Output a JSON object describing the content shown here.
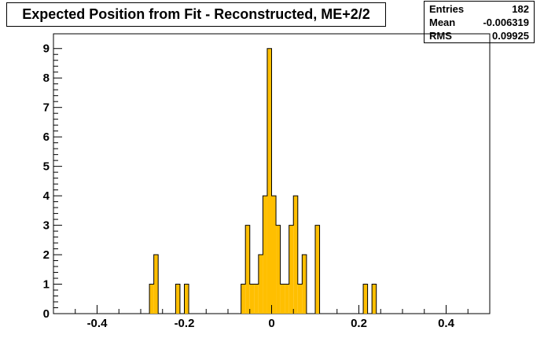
{
  "title": "Expected Position from Fit - Reconstructed, ME+2/2",
  "stats": [
    {
      "label": "Entries",
      "value": "182"
    },
    {
      "label": "Mean",
      "value": "-0.006319"
    },
    {
      "label": "RMS",
      "value": "0.09925"
    }
  ],
  "colors": {
    "fill": "#ffbf00",
    "line": "#000000",
    "background": "#ffffff"
  },
  "chart_data": {
    "type": "bar",
    "title": "Expected Position from Fit - Reconstructed, ME+2/2",
    "xlabel": "",
    "ylabel": "",
    "xlim": [
      -0.5,
      0.5
    ],
    "ylim": [
      0,
      9.5
    ],
    "bin_width": 0.01,
    "xticks": [
      "-0.4",
      "-0.2",
      "0",
      "0.2",
      "0.4"
    ],
    "xtick_values": [
      -0.4,
      -0.2,
      0,
      0.2,
      0.4
    ],
    "yticks": [
      "0",
      "1",
      "2",
      "3",
      "4",
      "5",
      "6",
      "7",
      "8",
      "9"
    ],
    "yticks_values": [
      0,
      1,
      2,
      3,
      4,
      5,
      6,
      7,
      8,
      9
    ],
    "grid": false,
    "bins": [
      {
        "x": -0.275,
        "value": 1
      },
      {
        "x": -0.265,
        "value": 2
      },
      {
        "x": -0.215,
        "value": 1
      },
      {
        "x": -0.195,
        "value": 1
      },
      {
        "x": -0.065,
        "value": 1
      },
      {
        "x": -0.055,
        "value": 3
      },
      {
        "x": -0.045,
        "value": 1
      },
      {
        "x": -0.035,
        "value": 1
      },
      {
        "x": -0.025,
        "value": 2
      },
      {
        "x": -0.015,
        "value": 4
      },
      {
        "x": -0.005,
        "value": 9
      },
      {
        "x": 0.005,
        "value": 4
      },
      {
        "x": 0.015,
        "value": 3
      },
      {
        "x": 0.025,
        "value": 1
      },
      {
        "x": 0.035,
        "value": 1
      },
      {
        "x": 0.045,
        "value": 3
      },
      {
        "x": 0.055,
        "value": 4
      },
      {
        "x": 0.065,
        "value": 1
      },
      {
        "x": 0.075,
        "value": 2
      },
      {
        "x": 0.105,
        "value": 3
      },
      {
        "x": 0.215,
        "value": 1
      },
      {
        "x": 0.235,
        "value": 1
      }
    ]
  }
}
